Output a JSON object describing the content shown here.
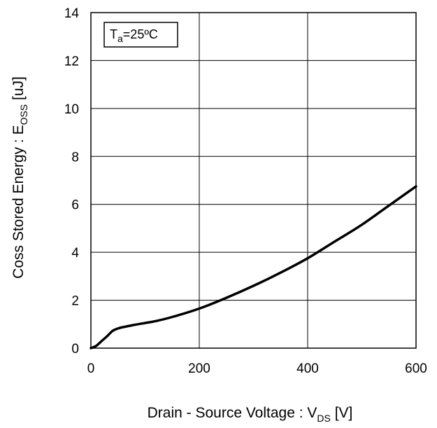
{
  "chart_data": {
    "type": "line",
    "xlabel": {
      "main": "Drain - Source Voltage : V",
      "sub": "DS",
      "tail": " [V]"
    },
    "ylabel": {
      "main": "Coss Stored Energy : E",
      "sub": "OSS",
      "tail": " [uJ]"
    },
    "xlim": [
      0,
      600
    ],
    "ylim": [
      0,
      14
    ],
    "xticks": [
      0,
      200,
      400,
      600
    ],
    "yticks": [
      0,
      2,
      4,
      6,
      8,
      10,
      12,
      14
    ],
    "x_grid_step": 200,
    "y_grid_step": 2,
    "grid": true,
    "annotation": {
      "main": "T",
      "sub": "a",
      "tail": "=25ºC"
    },
    "series": [
      {
        "color": "#000000",
        "x": [
          0,
          10,
          20,
          30,
          40,
          50,
          60,
          80,
          100,
          120,
          150,
          200,
          250,
          300,
          350,
          400,
          450,
          500,
          550,
          600
        ],
        "y": [
          0,
          0.1,
          0.3,
          0.5,
          0.72,
          0.82,
          0.88,
          0.97,
          1.05,
          1.13,
          1.3,
          1.65,
          2.1,
          2.6,
          3.15,
          3.75,
          4.45,
          5.15,
          5.95,
          6.75
        ]
      }
    ]
  }
}
